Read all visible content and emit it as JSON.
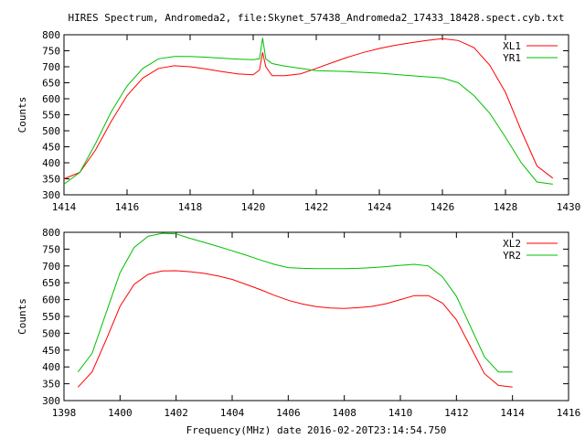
{
  "title": "HIRES Spectrum, Andromeda2, file:Skynet_57438_Andromeda2_17433_18428.spect.cyb.txt",
  "xlabel": "Frequency(MHz) date 2016-02-20T23:14:54.750",
  "chart_data": [
    {
      "type": "line",
      "ylabel": "Counts",
      "xlim": [
        1414,
        1430
      ],
      "ylim": [
        300,
        800
      ],
      "xticks": [
        1414,
        1416,
        1418,
        1420,
        1422,
        1424,
        1426,
        1428,
        1430
      ],
      "yticks": [
        300,
        350,
        400,
        450,
        500,
        550,
        600,
        650,
        700,
        750,
        800
      ],
      "legend": "top-right",
      "series": [
        {
          "name": "XL1",
          "color": "#ff0000",
          "x": [
            1414,
            1414.5,
            1415,
            1415.5,
            1416,
            1416.5,
            1417,
            1417.5,
            1418,
            1418.5,
            1419,
            1419.5,
            1420,
            1420.2,
            1420.3,
            1420.4,
            1420.6,
            1421,
            1421.5,
            1422,
            1422.5,
            1423,
            1423.5,
            1424,
            1424.5,
            1425,
            1425.5,
            1426,
            1426.5,
            1427,
            1427.5,
            1428,
            1428.5,
            1429,
            1429.5
          ],
          "y": [
            350,
            370,
            440,
            530,
            610,
            665,
            695,
            703,
            700,
            693,
            685,
            678,
            675,
            690,
            745,
            700,
            672,
            672,
            678,
            695,
            713,
            730,
            745,
            757,
            767,
            775,
            782,
            788,
            782,
            760,
            705,
            620,
            500,
            390,
            352
          ]
        },
        {
          "name": "YR1",
          "color": "#00c000",
          "x": [
            1414,
            1414.5,
            1415,
            1415.5,
            1416,
            1416.5,
            1417,
            1417.5,
            1418,
            1418.5,
            1419,
            1419.5,
            1420,
            1420.2,
            1420.3,
            1420.4,
            1420.6,
            1421,
            1421.5,
            1422,
            1423,
            1424,
            1425,
            1426,
            1426.5,
            1427,
            1427.5,
            1428,
            1428.5,
            1429,
            1429.5
          ],
          "y": [
            333,
            370,
            460,
            560,
            640,
            695,
            725,
            732,
            732,
            730,
            727,
            724,
            722,
            725,
            790,
            725,
            710,
            702,
            695,
            688,
            685,
            680,
            672,
            665,
            650,
            610,
            555,
            480,
            400,
            340,
            333
          ]
        }
      ]
    },
    {
      "type": "line",
      "ylabel": "Counts",
      "xlim": [
        1398,
        1416
      ],
      "ylim": [
        300,
        800
      ],
      "xticks": [
        1398,
        1400,
        1402,
        1404,
        1406,
        1408,
        1410,
        1412,
        1414,
        1416
      ],
      "yticks": [
        300,
        350,
        400,
        450,
        500,
        550,
        600,
        650,
        700,
        750,
        800
      ],
      "legend": "top-right",
      "series": [
        {
          "name": "XL2",
          "color": "#ff0000",
          "x": [
            1398.5,
            1399,
            1399.5,
            1400,
            1400.5,
            1401,
            1401.5,
            1402,
            1402.5,
            1403,
            1403.5,
            1404,
            1404.5,
            1405,
            1405.5,
            1406,
            1406.5,
            1407,
            1407.5,
            1408,
            1408.5,
            1409,
            1409.5,
            1410,
            1410.5,
            1411,
            1411.5,
            1412,
            1412.5,
            1413,
            1413.5,
            1414
          ],
          "y": [
            340,
            385,
            480,
            580,
            645,
            675,
            685,
            686,
            683,
            678,
            670,
            660,
            645,
            630,
            613,
            598,
            587,
            579,
            575,
            574,
            576,
            580,
            588,
            600,
            612,
            612,
            590,
            540,
            460,
            380,
            345,
            340
          ]
        },
        {
          "name": "YR2",
          "color": "#00c000",
          "x": [
            1398.5,
            1399,
            1399.5,
            1400,
            1400.5,
            1401,
            1401.5,
            1402,
            1402.5,
            1403,
            1403.5,
            1404,
            1404.5,
            1405,
            1405.5,
            1406,
            1406.5,
            1407,
            1407.5,
            1408,
            1408.5,
            1409,
            1409.5,
            1410,
            1410.5,
            1411,
            1411.5,
            1412,
            1412.5,
            1413,
            1413.5,
            1414
          ],
          "y": [
            385,
            440,
            560,
            680,
            755,
            788,
            797,
            795,
            782,
            770,
            758,
            745,
            732,
            718,
            705,
            695,
            693,
            692,
            692,
            692,
            693,
            695,
            698,
            702,
            705,
            700,
            668,
            610,
            520,
            430,
            385,
            385
          ]
        }
      ]
    }
  ]
}
